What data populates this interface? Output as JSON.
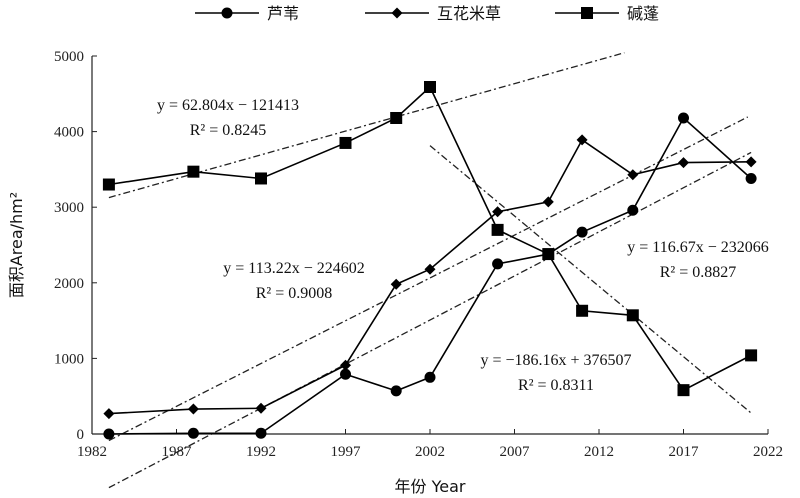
{
  "chart_data": {
    "type": "line",
    "xlabel": "年份 Year",
    "ylabel": "面积Area/hm²",
    "xlim": [
      1982,
      2022
    ],
    "ylim": [
      0,
      5000
    ],
    "xticks": [
      "1982",
      "1987",
      "1992",
      "1997",
      "2002",
      "2007",
      "2012",
      "2017",
      "2022"
    ],
    "yticks": [
      "0",
      "1000",
      "2000",
      "3000",
      "4000",
      "5000"
    ],
    "legend_position": "top",
    "series": [
      {
        "name": "芦苇",
        "marker": "circle",
        "x": [
          1983,
          1988,
          1992,
          1997,
          2000,
          2002,
          2006,
          2009,
          2011,
          2014,
          2017,
          2021
        ],
        "y": [
          0,
          10,
          10,
          790,
          570,
          750,
          2250,
          2380,
          2670,
          2960,
          4180,
          3380
        ],
        "trend": {
          "line1": "y = 116.67x − 232066",
          "line2": "R² = 0.8827"
        }
      },
      {
        "name": "互花米草",
        "marker": "diamond",
        "x": [
          1983,
          1988,
          1992,
          1997,
          2000,
          2002,
          2006,
          2009,
          2011,
          2014,
          2017,
          2021
        ],
        "y": [
          270,
          330,
          340,
          910,
          1980,
          2180,
          2940,
          3070,
          3890,
          3430,
          3590,
          3600
        ],
        "trend": {
          "line1": "y = 113.22x − 224602",
          "line2": "R² = 0.9008"
        }
      },
      {
        "name": "碱蓬",
        "marker": "square",
        "x": [
          1983,
          1988,
          1992,
          1997,
          2000,
          2002,
          2006,
          2009,
          2011,
          2014,
          2017,
          2021
        ],
        "y": [
          3300,
          3470,
          3380,
          3850,
          4180,
          4590,
          2700,
          2380,
          1630,
          1570,
          580,
          1040
        ],
        "trend": {
          "line1": "y = 62.804x − 121413",
          "line2": "R² = 0.8245"
        }
      }
    ],
    "extra_trend": {
      "line1": "y = −186.16x + 376507",
      "line2": "R² = 0.8311"
    }
  }
}
